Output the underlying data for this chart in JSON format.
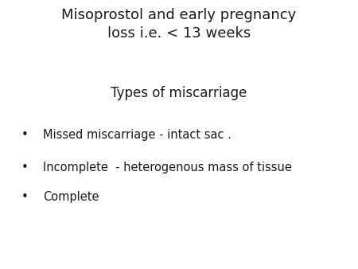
{
  "background_color": "#ffffff",
  "title_line1": "Misoprostol and early pregnancy",
  "title_line2": "loss i.e. < 13 weeks",
  "subtitle": "Types of miscarriage",
  "bullet_points": [
    "Missed miscarriage - intact sac .",
    "Incomplete  - heterogenous mass of tissue",
    "Complete"
  ],
  "title_fontsize": 13,
  "subtitle_fontsize": 12,
  "bullet_fontsize": 10.5,
  "text_color": "#1a1a1a",
  "font_family": "DejaVu Sans"
}
